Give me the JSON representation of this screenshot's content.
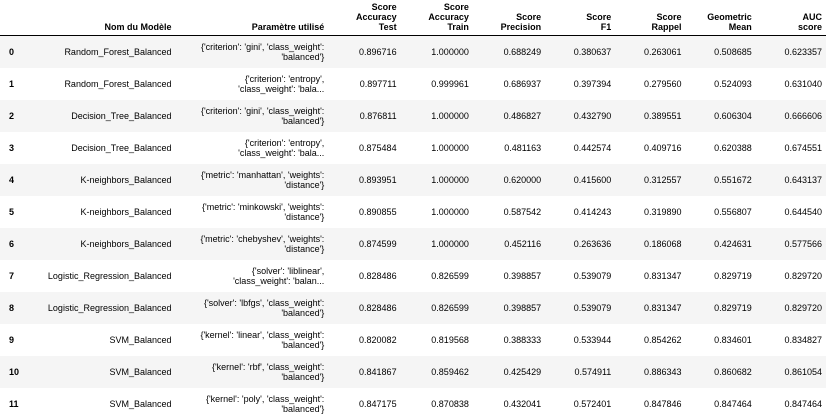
{
  "table": {
    "headers": {
      "index": "",
      "model": "Nom du Modèle",
      "param": "Paramètre utilisé",
      "acc_test": "Score Accuracy\nTest",
      "acc_train": "Score Accuracy\nTrain",
      "precision": "Score\nPrecision",
      "f1": "Score\nF1",
      "recall": "Score\nRappel",
      "gmean": "Geometric\nMean",
      "auc": "AUC\nscore"
    },
    "rows": [
      {
        "index": "0",
        "model": "Random_Forest_Balanced",
        "param": "{'criterion': 'gini', 'class_weight':\n'balanced'}",
        "acc_test": "0.896716",
        "acc_train": "1.000000",
        "precision": "0.688249",
        "f1": "0.380637",
        "recall": "0.263061",
        "gmean": "0.508685",
        "auc": "0.623357"
      },
      {
        "index": "1",
        "model": "Random_Forest_Balanced",
        "param": "{'criterion': 'entropy',\n'class_weight': 'bala...",
        "acc_test": "0.897711",
        "acc_train": "0.999961",
        "precision": "0.686937",
        "f1": "0.397394",
        "recall": "0.279560",
        "gmean": "0.524093",
        "auc": "0.631040"
      },
      {
        "index": "2",
        "model": "Decision_Tree_Balanced",
        "param": "{'criterion': 'gini', 'class_weight':\n'balanced'}",
        "acc_test": "0.876811",
        "acc_train": "1.000000",
        "precision": "0.486827",
        "f1": "0.432790",
        "recall": "0.389551",
        "gmean": "0.606304",
        "auc": "0.666606"
      },
      {
        "index": "3",
        "model": "Decision_Tree_Balanced",
        "param": "{'criterion': 'entropy',\n'class_weight': 'bala...",
        "acc_test": "0.875484",
        "acc_train": "1.000000",
        "precision": "0.481163",
        "f1": "0.442574",
        "recall": "0.409716",
        "gmean": "0.620388",
        "auc": "0.674551"
      },
      {
        "index": "4",
        "model": "K-neighbors_Balanced",
        "param": "{'metric': 'manhattan', 'weights':\n'distance'}",
        "acc_test": "0.893951",
        "acc_train": "1.000000",
        "precision": "0.620000",
        "f1": "0.415600",
        "recall": "0.312557",
        "gmean": "0.551672",
        "auc": "0.643137"
      },
      {
        "index": "5",
        "model": "K-neighbors_Balanced",
        "param": "{'metric': 'minkowski', 'weights':\n'distance'}",
        "acc_test": "0.890855",
        "acc_train": "1.000000",
        "precision": "0.587542",
        "f1": "0.414243",
        "recall": "0.319890",
        "gmean": "0.556807",
        "auc": "0.644540"
      },
      {
        "index": "6",
        "model": "K-neighbors_Balanced",
        "param": "{'metric': 'chebyshev', 'weights':\n'distance'}",
        "acc_test": "0.874599",
        "acc_train": "1.000000",
        "precision": "0.452116",
        "f1": "0.263636",
        "recall": "0.186068",
        "gmean": "0.424631",
        "auc": "0.577566"
      },
      {
        "index": "7",
        "model": "Logistic_Regression_Balanced",
        "param": "{'solver': 'liblinear',\n'class_weight': 'balan...",
        "acc_test": "0.828486",
        "acc_train": "0.826599",
        "precision": "0.398857",
        "f1": "0.539079",
        "recall": "0.831347",
        "gmean": "0.829719",
        "auc": "0.829720"
      },
      {
        "index": "8",
        "model": "Logistic_Regression_Balanced",
        "param": "{'solver': 'lbfgs', 'class_weight':\n'balanced'}",
        "acc_test": "0.828486",
        "acc_train": "0.826599",
        "precision": "0.398857",
        "f1": "0.539079",
        "recall": "0.831347",
        "gmean": "0.829719",
        "auc": "0.829720"
      },
      {
        "index": "9",
        "model": "SVM_Balanced",
        "param": "{'kernel': 'linear', 'class_weight':\n'balanced'}",
        "acc_test": "0.820082",
        "acc_train": "0.819568",
        "precision": "0.388333",
        "f1": "0.533944",
        "recall": "0.854262",
        "gmean": "0.834601",
        "auc": "0.834827"
      },
      {
        "index": "10",
        "model": "SVM_Balanced",
        "param": "{'kernel': 'rbf', 'class_weight':\n'balanced'}",
        "acc_test": "0.841867",
        "acc_train": "0.859462",
        "precision": "0.425429",
        "f1": "0.574911",
        "recall": "0.886343",
        "gmean": "0.860682",
        "auc": "0.861054"
      },
      {
        "index": "11",
        "model": "SVM_Balanced",
        "param": "{'kernel': 'poly', 'class_weight':\n'balanced'}",
        "acc_test": "0.847175",
        "acc_train": "0.870838",
        "precision": "0.432041",
        "f1": "0.572401",
        "recall": "0.847846",
        "gmean": "0.847464",
        "auc": "0.847464"
      }
    ]
  }
}
